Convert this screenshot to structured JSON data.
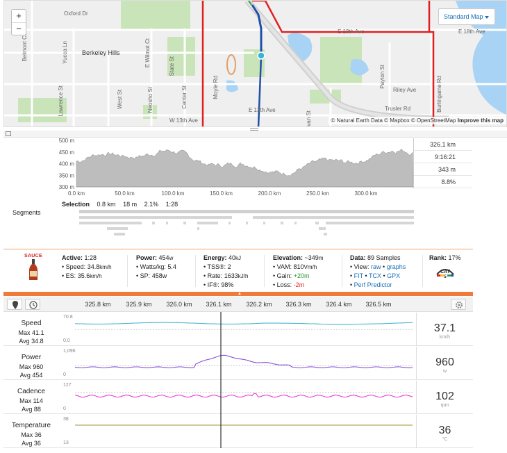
{
  "map": {
    "zoom_in": "+",
    "zoom_out": "−",
    "map_type": "Standard Map",
    "attribution": "© Natural Earth Data © Mapbox © OpenStreetMap",
    "improve": "Improve this map",
    "labels": {
      "oxford": "Oxford Dr",
      "berkeley": "Berkeley Hills",
      "belmont": "Belmont Ct",
      "yucca": "Yucca Ln",
      "ewilmot": "E Wilmot Ct",
      "state": "State St",
      "lawrence": "Lawrence St",
      "west": "West St",
      "neosho": "Neosho St",
      "center": "Center St",
      "moyle": "Moyle Rd",
      "w13": "W 13th Ave",
      "e13": "E 13th Ave",
      "e18a": "E 18th Ave",
      "e18b": "E 18th Ave",
      "riley": "Riley Ave",
      "payton": "Payton St",
      "trusler": "Trusler Rd",
      "burlingame": "Burlingame Rd",
      "van": "van St"
    }
  },
  "elevation": {
    "y_ticks": [
      "500 m",
      "450 m",
      "400 m",
      "350 m",
      "300 m"
    ],
    "x_ticks": [
      "0.0 km",
      "50.0 km",
      "100.0 km",
      "150.0 km",
      "200.0 km",
      "250.0 km",
      "300.0 km"
    ],
    "stats": [
      "326.1 km",
      "9:16:21",
      "343 m",
      "8.8%"
    ],
    "selection": {
      "label": "Selection",
      "distance": "0.8 km",
      "gain": "18 m",
      "grade": "2.1%",
      "time": "1:28"
    },
    "segments_label": "Segments"
  },
  "summary": {
    "logo": "SAUCE",
    "active": {
      "label": "Active:",
      "value": "1:28",
      "speed_label": "Speed:",
      "speed": "34.8",
      "speed_unit": "km/h",
      "es_label": "ES:",
      "es": "35.6",
      "es_unit": "km/h"
    },
    "power": {
      "label": "Power:",
      "value": "454",
      "unit": "w",
      "wkg_label": "Watts/kg:",
      "wkg": "5.4",
      "sp_label": "SP:",
      "sp": "458w"
    },
    "energy": {
      "label": "Energy:",
      "value": "40",
      "unit": "kJ",
      "tss_label": "TSS®:",
      "tss": "2",
      "rate_label": "Rate:",
      "rate": "1633",
      "rate_unit": "kJ/h",
      "if_label": "IF®:",
      "if": "98%"
    },
    "elevation": {
      "label": "Elevation:",
      "value": "~349",
      "unit": "m",
      "vam_label": "VAM:",
      "vam": "810",
      "vam_unit": "Vm/h",
      "gain_label": "Gain:",
      "gain": "+20m",
      "loss_label": "Loss:",
      "loss": "-2m"
    },
    "data": {
      "label": "Data:",
      "value": "89 Samples",
      "view_label": "View:",
      "view_raw": "raw",
      "view_sep": " • ",
      "view_graphs": "graphs",
      "fit": "FIT",
      "tcx": "TCX",
      "gpx": "GPX",
      "sep": " • ",
      "perf": "Perf Predictor"
    },
    "rank": {
      "label": "Rank:",
      "value": "17%",
      "badge": "CAT",
      "badge_num": "5"
    }
  },
  "streams": {
    "ticks": [
      "325.8 km",
      "325.9 km",
      "326.0 km",
      "326.1 km",
      "326.2 km",
      "326.3 km",
      "326.4 km",
      "326.5 km"
    ],
    "rows": [
      {
        "name": "Speed",
        "max": "Max 41.1",
        "avg": "Avg 34.8",
        "top": "70.8",
        "bot": "0.0",
        "value": "37.1",
        "unit": "km/h",
        "color": "#4fb6cf"
      },
      {
        "name": "Power",
        "max": "Max 960",
        "avg": "Avg 454",
        "top": "1,096",
        "bot": "0",
        "value": "960",
        "unit": "w",
        "color": "#8a4fd6"
      },
      {
        "name": "Cadence",
        "max": "Max 114",
        "avg": "Avg 88",
        "top": "127",
        "bot": "0",
        "value": "102",
        "unit": "rpm",
        "color": "#e63fd3"
      },
      {
        "name": "Temperature",
        "max": "Max 36",
        "avg": "Avg 36",
        "top": "38",
        "bot": "13",
        "value": "36",
        "unit": "°C",
        "color": "#a29a3a"
      }
    ]
  },
  "colors": {
    "accent": "#f07a3a",
    "route_red": "#e02020",
    "route_blue": "#1f4fa8",
    "link": "#1a6fb5"
  }
}
